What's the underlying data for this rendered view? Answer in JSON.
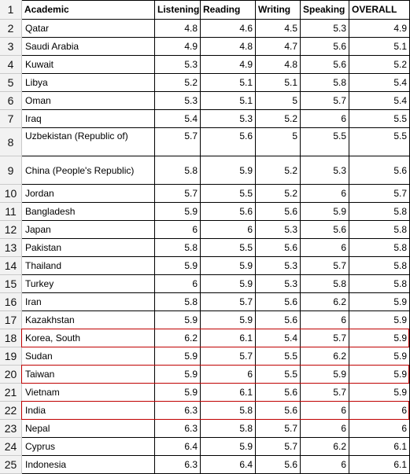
{
  "headers": {
    "academic": "Academic",
    "listening": "Listening",
    "reading": "Reading",
    "writing": "Writing",
    "speaking": "Speaking",
    "overall": "OVERALL"
  },
  "header_row_number": "1",
  "rows": [
    {
      "n": "2",
      "country": "Qatar",
      "l": "4.8",
      "r": "4.6",
      "w": "4.5",
      "s": "5.3",
      "o": "4.9"
    },
    {
      "n": "3",
      "country": "Saudi Arabia",
      "l": "4.9",
      "r": "4.8",
      "w": "4.7",
      "s": "5.6",
      "o": "5.1"
    },
    {
      "n": "4",
      "country": "Kuwait",
      "l": "5.3",
      "r": "4.9",
      "w": "4.8",
      "s": "5.6",
      "o": "5.2"
    },
    {
      "n": "5",
      "country": "Libya",
      "l": "5.2",
      "r": "5.1",
      "w": "5.1",
      "s": "5.8",
      "o": "5.4"
    },
    {
      "n": "6",
      "country": "Oman",
      "l": "5.3",
      "r": "5.1",
      "w": "5",
      "s": "5.7",
      "o": "5.4"
    },
    {
      "n": "7",
      "country": "Iraq",
      "l": "5.4",
      "r": "5.3",
      "w": "5.2",
      "s": "6",
      "o": "5.5"
    },
    {
      "n": "8",
      "country": "Uzbekistan (Republic of)",
      "l": "5.7",
      "r": "5.6",
      "w": "5",
      "s": "5.5",
      "o": "5.5"
    },
    {
      "n": "9",
      "country": "China (People's Republic)",
      "l": "5.8",
      "r": "5.9",
      "w": "5.2",
      "s": "5.3",
      "o": "5.6"
    },
    {
      "n": "10",
      "country": "Jordan",
      "l": "5.7",
      "r": "5.5",
      "w": "5.2",
      "s": "6",
      "o": "5.7"
    },
    {
      "n": "11",
      "country": "Bangladesh",
      "l": "5.9",
      "r": "5.6",
      "w": "5.6",
      "s": "5.9",
      "o": "5.8"
    },
    {
      "n": "12",
      "country": "Japan",
      "l": "6",
      "r": "6",
      "w": "5.3",
      "s": "5.6",
      "o": "5.8"
    },
    {
      "n": "13",
      "country": "Pakistan",
      "l": "5.8",
      "r": "5.5",
      "w": "5.6",
      "s": "6",
      "o": "5.8"
    },
    {
      "n": "14",
      "country": "Thailand",
      "l": "5.9",
      "r": "5.9",
      "w": "5.3",
      "s": "5.7",
      "o": "5.8"
    },
    {
      "n": "15",
      "country": "Turkey",
      "l": "6",
      "r": "5.9",
      "w": "5.3",
      "s": "5.8",
      "o": "5.8"
    },
    {
      "n": "16",
      "country": "Iran",
      "l": "5.8",
      "r": "5.7",
      "w": "5.6",
      "s": "6.2",
      "o": "5.9"
    },
    {
      "n": "17",
      "country": "Kazakhstan",
      "l": "5.9",
      "r": "5.9",
      "w": "5.6",
      "s": "6",
      "o": "5.9"
    },
    {
      "n": "18",
      "country": "Korea, South",
      "l": "6.2",
      "r": "6.1",
      "w": "5.4",
      "s": "5.7",
      "o": "5.9"
    },
    {
      "n": "19",
      "country": "Sudan",
      "l": "5.9",
      "r": "5.7",
      "w": "5.5",
      "s": "6.2",
      "o": "5.9"
    },
    {
      "n": "20",
      "country": "Taiwan",
      "l": "5.9",
      "r": "6",
      "w": "5.5",
      "s": "5.9",
      "o": "5.9"
    },
    {
      "n": "21",
      "country": "Vietnam",
      "l": "5.9",
      "r": "6.1",
      "w": "5.6",
      "s": "5.7",
      "o": "5.9"
    },
    {
      "n": "22",
      "country": "India",
      "l": "6.3",
      "r": "5.8",
      "w": "5.6",
      "s": "6",
      "o": "6"
    },
    {
      "n": "23",
      "country": "Nepal",
      "l": "6.3",
      "r": "5.8",
      "w": "5.7",
      "s": "6",
      "o": "6"
    },
    {
      "n": "24",
      "country": "Cyprus",
      "l": "6.4",
      "r": "5.9",
      "w": "5.7",
      "s": "6.2",
      "o": "6.1"
    },
    {
      "n": "25",
      "country": "Indonesia",
      "l": "6.3",
      "r": "6.4",
      "w": "5.6",
      "s": "6",
      "o": "6.1"
    }
  ],
  "highlighted_rows": [
    "18",
    "20",
    "22"
  ],
  "colors": {
    "highlight_border": "#c00000",
    "row_header_bg": "#f2f2f2",
    "grid": "#000000"
  }
}
